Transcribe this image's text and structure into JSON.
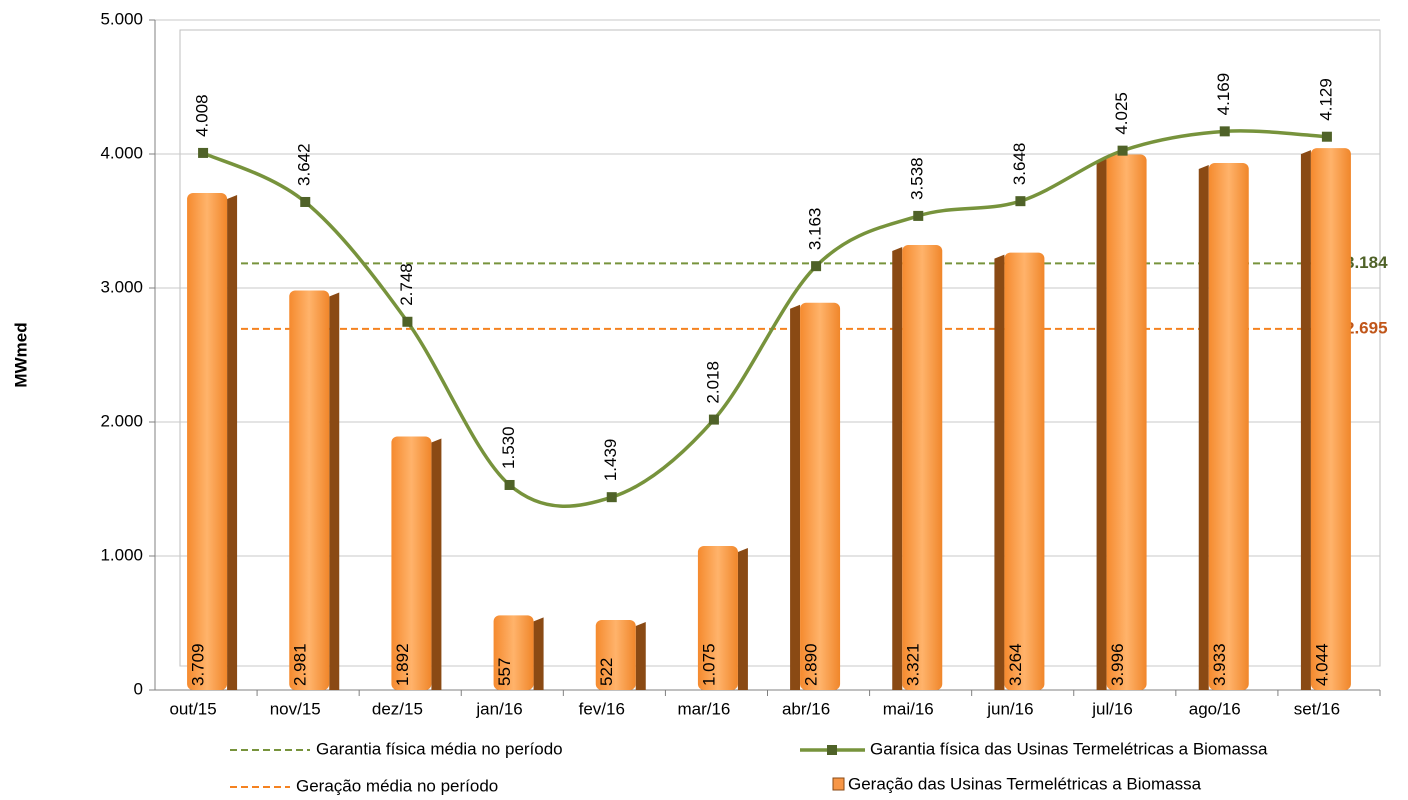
{
  "chart_data": {
    "type": "bar_line",
    "y_label": "MWmed",
    "categories": [
      "out/15",
      "nov/15",
      "dez/15",
      "jan/16",
      "fev/16",
      "mar/16",
      "abr/16",
      "mai/16",
      "jun/16",
      "jul/16",
      "ago/16",
      "set/16"
    ],
    "series": [
      {
        "name": "Geração das Usinas Termelétricas a Biomassa",
        "type": "bar",
        "color": "#f79646",
        "values": [
          3709,
          2981,
          1892,
          557,
          522,
          1075,
          2890,
          3321,
          3264,
          3996,
          3933,
          4044
        ],
        "value_labels": [
          "3.709",
          "2.981",
          "1.892",
          "557",
          "522",
          "1.075",
          "2.890",
          "3.321",
          "3.264",
          "3.996",
          "3.933",
          "4.044"
        ]
      },
      {
        "name": "Garantia física das Usinas Termelétricas a Biomassa",
        "type": "line",
        "color": "#77933c",
        "values": [
          4008,
          3642,
          2748,
          1530,
          1439,
          2018,
          3163,
          3538,
          3648,
          4025,
          4169,
          4129
        ],
        "value_labels": [
          "4.008",
          "3.642",
          "2.748",
          "1.530",
          "1.439",
          "2.018",
          "3.163",
          "3.538",
          "3.648",
          "4.025",
          "4.169",
          "4.129"
        ]
      }
    ],
    "reference_lines": [
      {
        "name": "Garantia física média no período",
        "value": 3184,
        "value_label": "3.184",
        "color": "#77933c"
      },
      {
        "name": "Geração média no período",
        "value": 2695,
        "value_label": "2.695",
        "color": "#f58220"
      }
    ],
    "ylim": [
      0,
      5000
    ],
    "yticks": [
      0,
      {
        "value": 1000,
        "label": "1.000"
      },
      {
        "value": 2000,
        "label": "2.000"
      },
      {
        "value": 3000,
        "label": "3.000"
      },
      {
        "value": 4000,
        "label": "4.000"
      },
      {
        "value": 5000,
        "label": "5.000"
      }
    ],
    "grid": true
  }
}
